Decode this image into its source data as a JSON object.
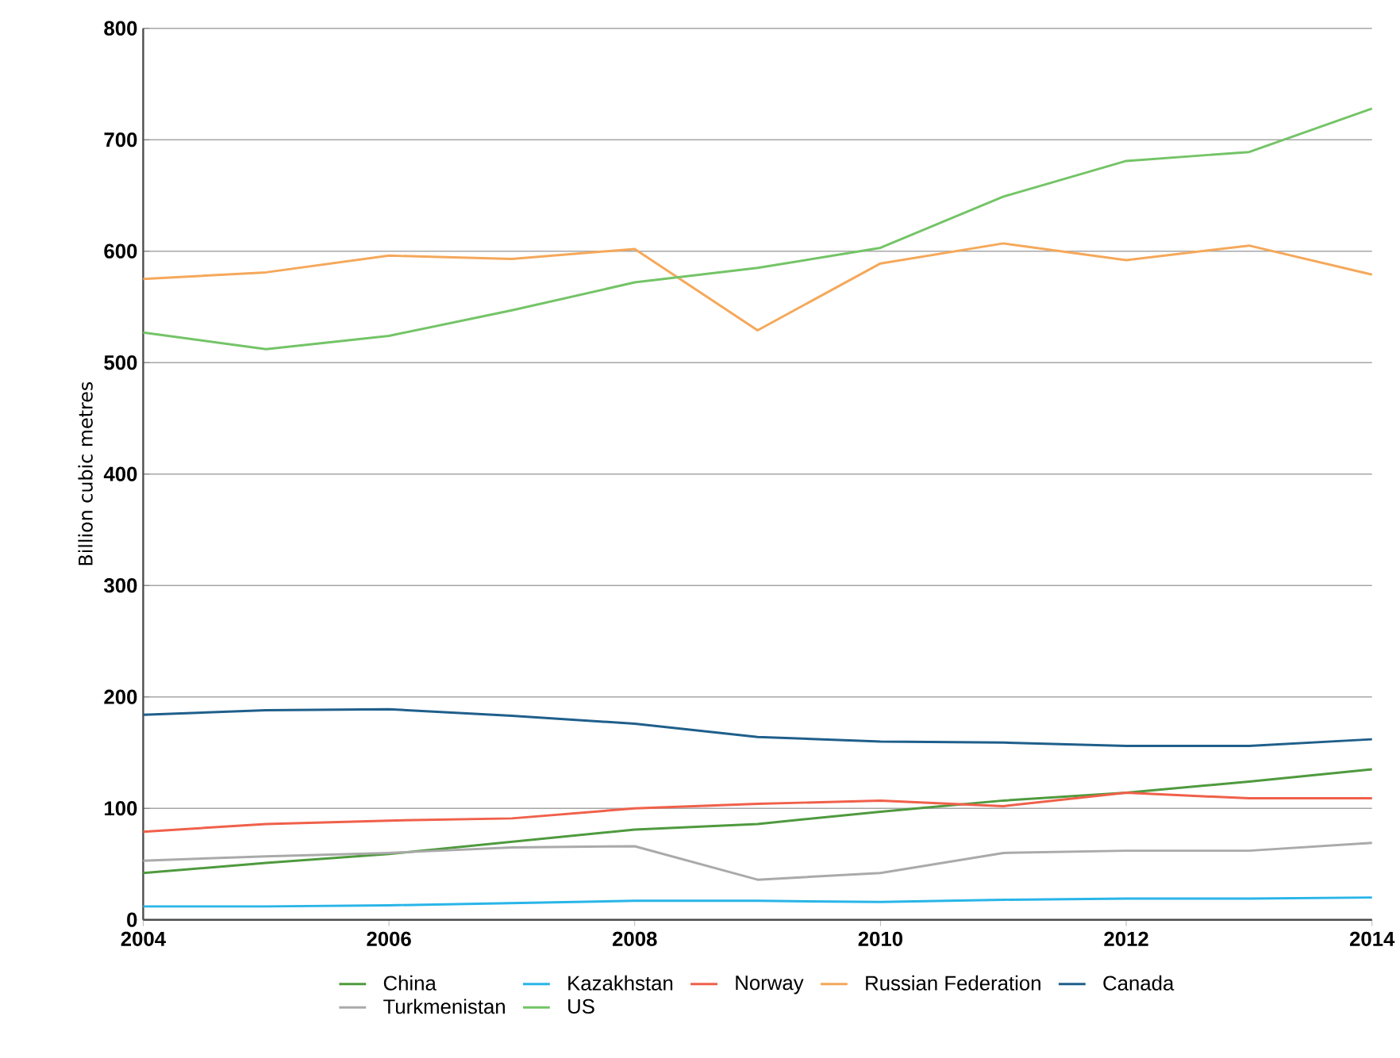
{
  "chart_data": {
    "type": "line",
    "ylabel": "Billion cubic metres",
    "x": [
      2004,
      2005,
      2006,
      2007,
      2008,
      2009,
      2010,
      2011,
      2012,
      2013,
      2014
    ],
    "xlim": [
      2004,
      2014
    ],
    "xticks": [
      2004,
      2006,
      2008,
      2010,
      2012,
      2014
    ],
    "ylim": [
      0,
      800
    ],
    "yticks": [
      0,
      100,
      200,
      300,
      400,
      500,
      600,
      700,
      800
    ],
    "grid": "y",
    "legend": "bottom",
    "series": [
      {
        "name": "China",
        "color": "#4f9a3e",
        "values": [
          42,
          51,
          59,
          70,
          81,
          86,
          97,
          107,
          114,
          124,
          135
        ]
      },
      {
        "name": "Kazakhstan",
        "color": "#29b5e8",
        "values": [
          12,
          12,
          13,
          15,
          17,
          17,
          16,
          18,
          19,
          19,
          20
        ]
      },
      {
        "name": "Norway",
        "color": "#f0604a",
        "values": [
          79,
          86,
          89,
          91,
          100,
          104,
          107,
          102,
          114,
          109,
          109
        ]
      },
      {
        "name": "Russian Federation",
        "color": "#f5a85a",
        "values": [
          575,
          581,
          596,
          593,
          602,
          529,
          589,
          607,
          592,
          605,
          579
        ]
      },
      {
        "name": "Canada",
        "color": "#1f5f8b",
        "values": [
          184,
          188,
          189,
          183,
          176,
          164,
          160,
          159,
          156,
          156,
          162
        ]
      },
      {
        "name": "Turkmenistan",
        "color": "#aaaaaa",
        "values": [
          53,
          57,
          60,
          65,
          66,
          36,
          42,
          60,
          62,
          62,
          69
        ]
      },
      {
        "name": "US",
        "color": "#74c467",
        "values": [
          527,
          512,
          524,
          547,
          572,
          585,
          603,
          649,
          681,
          689,
          728
        ]
      }
    ]
  }
}
